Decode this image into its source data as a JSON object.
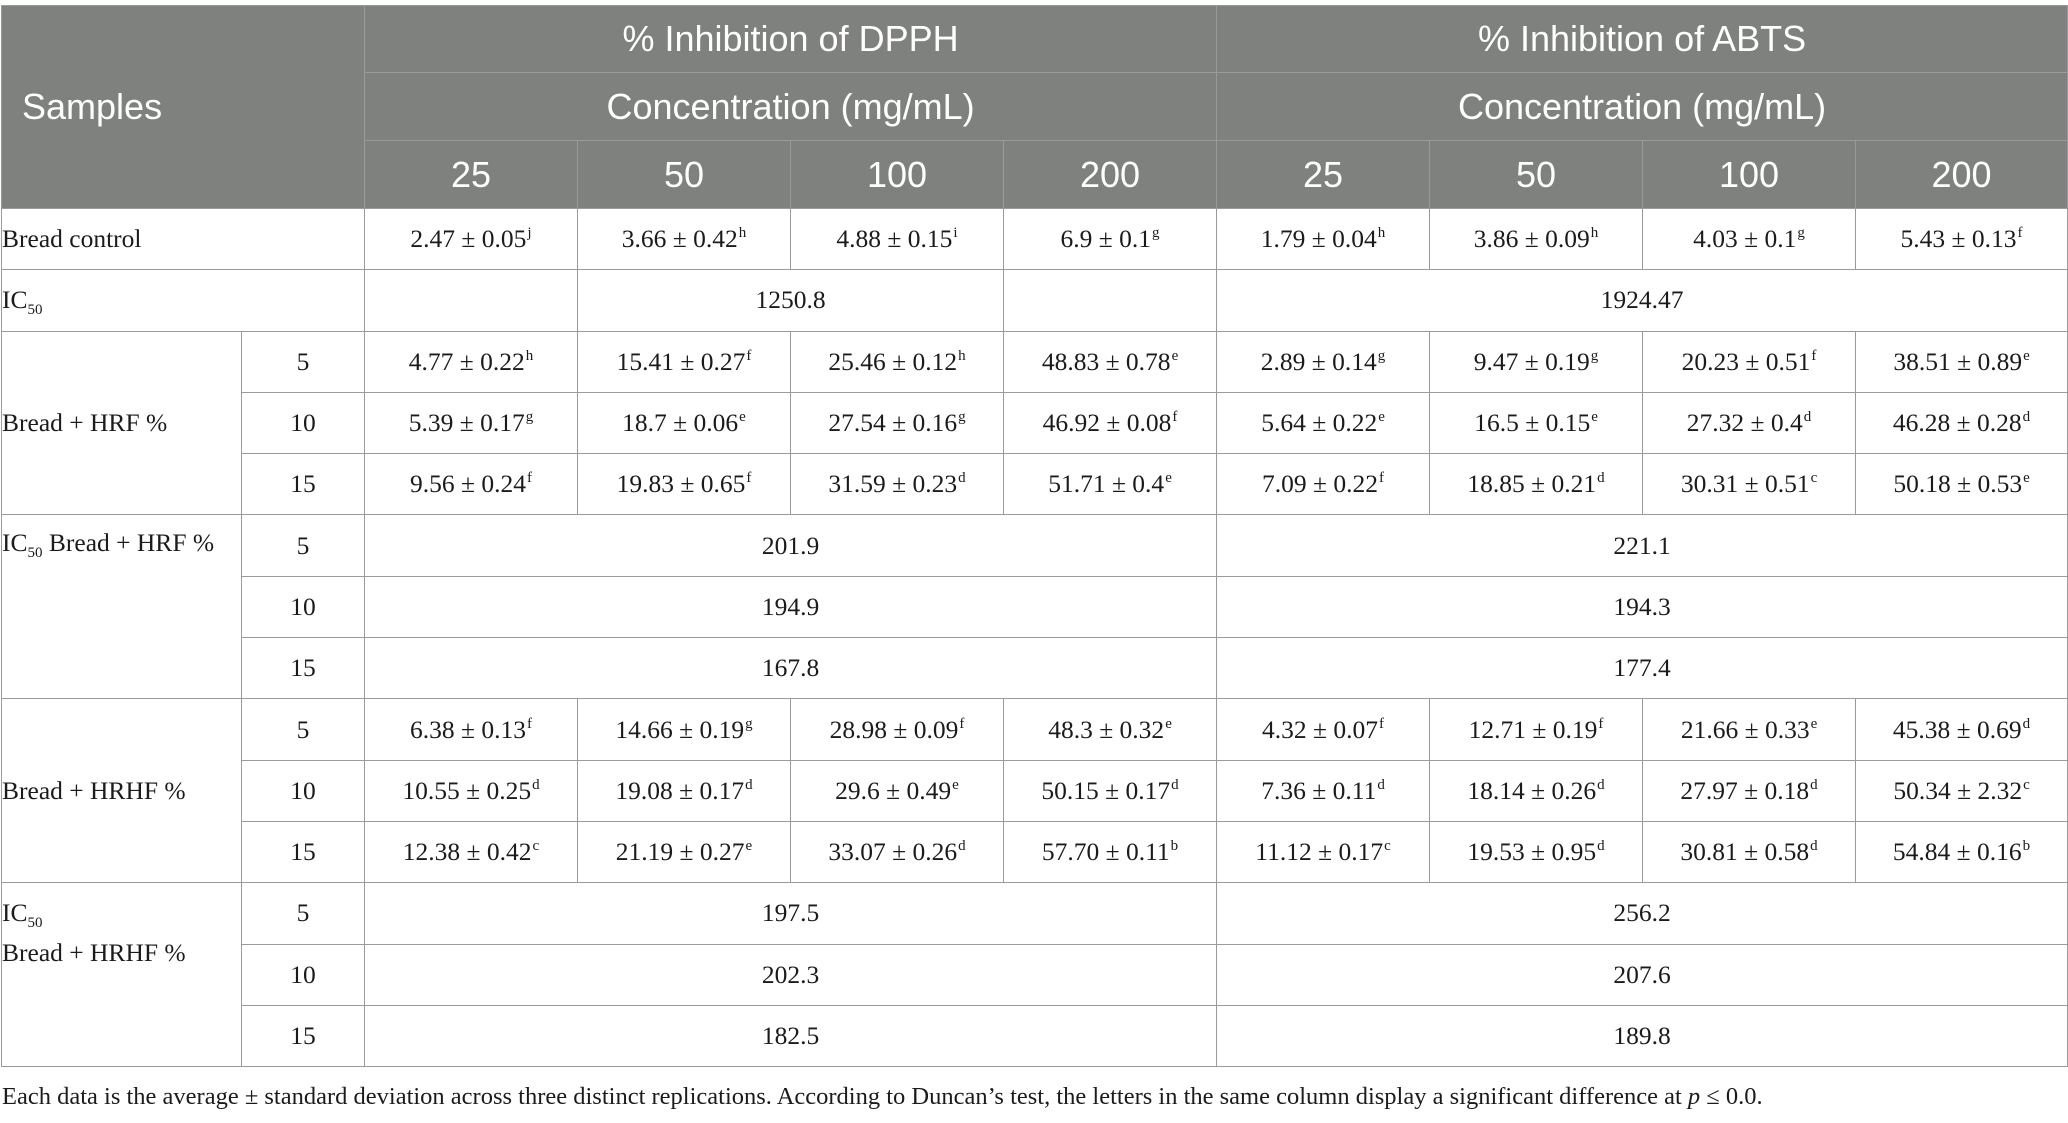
{
  "header": {
    "samples": "Samples",
    "dpph_title": "% Inhibition of DPPH",
    "abts_title": "% Inhibition of ABTS",
    "concentration": "Concentration (mg/mL)",
    "concentrations": [
      "25",
      "50",
      "100",
      "200"
    ]
  },
  "rows": {
    "control": {
      "label": "Bread control",
      "dpph": [
        {
          "v": "2.47 ± 0.05",
          "s": "j"
        },
        {
          "v": "3.66 ± 0.42",
          "s": "h"
        },
        {
          "v": "4.88 ± 0.15",
          "s": "i"
        },
        {
          "v": "6.9 ± 0.1",
          "s": "g"
        }
      ],
      "abts": [
        {
          "v": "1.79 ± 0.04",
          "s": "h"
        },
        {
          "v": "3.86 ± 0.09",
          "s": "h"
        },
        {
          "v": "4.03 ± 0.1",
          "s": "g"
        },
        {
          "v": "5.43 ± 0.13",
          "s": "f"
        }
      ]
    },
    "ic50_control": {
      "label_main": "IC",
      "label_sub": "50",
      "dpph": "1250.8",
      "abts": "1924.47"
    },
    "hrf": {
      "label": "Bread + HRF %",
      "levels": [
        {
          "level": "5",
          "dpph": [
            {
              "v": "4.77 ± 0.22",
              "s": "h"
            },
            {
              "v": "15.41 ± 0.27",
              "s": "f"
            },
            {
              "v": "25.46 ± 0.12",
              "s": "h"
            },
            {
              "v": "48.83 ± 0.78",
              "s": "e"
            }
          ],
          "abts": [
            {
              "v": "2.89 ± 0.14",
              "s": "g"
            },
            {
              "v": "9.47 ± 0.19",
              "s": "g"
            },
            {
              "v": "20.23 ± 0.51",
              "s": "f"
            },
            {
              "v": "38.51 ± 0.89",
              "s": "e"
            }
          ]
        },
        {
          "level": "10",
          "dpph": [
            {
              "v": "5.39 ± 0.17",
              "s": "g"
            },
            {
              "v": "18.7 ± 0.06",
              "s": "e"
            },
            {
              "v": "27.54 ± 0.16",
              "s": "g"
            },
            {
              "v": "46.92 ± 0.08",
              "s": "f"
            }
          ],
          "abts": [
            {
              "v": "5.64 ± 0.22",
              "s": "e"
            },
            {
              "v": "16.5 ± 0.15",
              "s": "e"
            },
            {
              "v": "27.32 ± 0.4",
              "s": "d"
            },
            {
              "v": "46.28 ± 0.28",
              "s": "d"
            }
          ]
        },
        {
          "level": "15",
          "dpph": [
            {
              "v": "9.56 ± 0.24",
              "s": "f"
            },
            {
              "v": "19.83 ± 0.65",
              "s": "f"
            },
            {
              "v": "31.59 ± 0.23",
              "s": "d"
            },
            {
              "v": "51.71 ± 0.4",
              "s": "e"
            }
          ],
          "abts": [
            {
              "v": "7.09 ± 0.22",
              "s": "f"
            },
            {
              "v": "18.85 ± 0.21",
              "s": "d"
            },
            {
              "v": "30.31 ± 0.51",
              "s": "c"
            },
            {
              "v": "50.18 ± 0.53",
              "s": "e"
            }
          ]
        }
      ]
    },
    "ic50_hrf": {
      "label_main": "IC",
      "label_sub": "50",
      "label_rest": " Bread + HRF %",
      "levels": [
        {
          "level": "5",
          "dpph": "201.9",
          "abts": "221.1"
        },
        {
          "level": "10",
          "dpph": "194.9",
          "abts": "194.3"
        },
        {
          "level": "15",
          "dpph": "167.8",
          "abts": "177.4"
        }
      ]
    },
    "hrhf": {
      "label": "Bread + HRHF %",
      "levels": [
        {
          "level": "5",
          "dpph": [
            {
              "v": "6.38 ± 0.13",
              "s": "f"
            },
            {
              "v": "14.66 ± 0.19",
              "s": "g"
            },
            {
              "v": "28.98 ± 0.09",
              "s": "f"
            },
            {
              "v": "48.3 ± 0.32",
              "s": "e"
            }
          ],
          "abts": [
            {
              "v": "4.32 ± 0.07",
              "s": "f"
            },
            {
              "v": "12.71 ± 0.19",
              "s": "f"
            },
            {
              "v": "21.66 ± 0.33",
              "s": "e"
            },
            {
              "v": "45.38 ± 0.69",
              "s": "d"
            }
          ]
        },
        {
          "level": "10",
          "dpph": [
            {
              "v": "10.55 ± 0.25",
              "s": "d"
            },
            {
              "v": "19.08 ± 0.17",
              "s": "d"
            },
            {
              "v": "29.6 ± 0.49",
              "s": "e"
            },
            {
              "v": "50.15 ± 0.17",
              "s": "d"
            }
          ],
          "abts": [
            {
              "v": "7.36 ± 0.11",
              "s": "d"
            },
            {
              "v": "18.14 ± 0.26",
              "s": "d"
            },
            {
              "v": "27.97 ± 0.18",
              "s": "d"
            },
            {
              "v": "50.34 ± 2.32",
              "s": "c"
            }
          ]
        },
        {
          "level": "15",
          "dpph": [
            {
              "v": "12.38 ± 0.42",
              "s": "c"
            },
            {
              "v": "21.19 ± 0.27",
              "s": "e"
            },
            {
              "v": "33.07 ± 0.26",
              "s": "d"
            },
            {
              "v": "57.70 ± 0.11",
              "s": "b"
            }
          ],
          "abts": [
            {
              "v": "11.12 ± 0.17",
              "s": "c"
            },
            {
              "v": "19.53 ± 0.95",
              "s": "d"
            },
            {
              "v": "30.81 ± 0.58",
              "s": "d"
            },
            {
              "v": "54.84 ± 0.16",
              "s": "b"
            }
          ]
        }
      ]
    },
    "ic50_hrhf": {
      "label_main": "IC",
      "label_sub": "50",
      "label_line2": "Bread + HRHF %",
      "levels": [
        {
          "level": "5",
          "dpph": "197.5",
          "abts": "256.2"
        },
        {
          "level": "10",
          "dpph": "202.3",
          "abts": "207.6"
        },
        {
          "level": "15",
          "dpph": "182.5",
          "abts": "189.8"
        }
      ]
    }
  },
  "footnote": {
    "text_before": "Each data is the average ± standard deviation across three distinct replications. According to Duncan’s test, the letters in the same column display a significant difference at ",
    "p": "p",
    "text_after": " ≤ 0.0."
  }
}
